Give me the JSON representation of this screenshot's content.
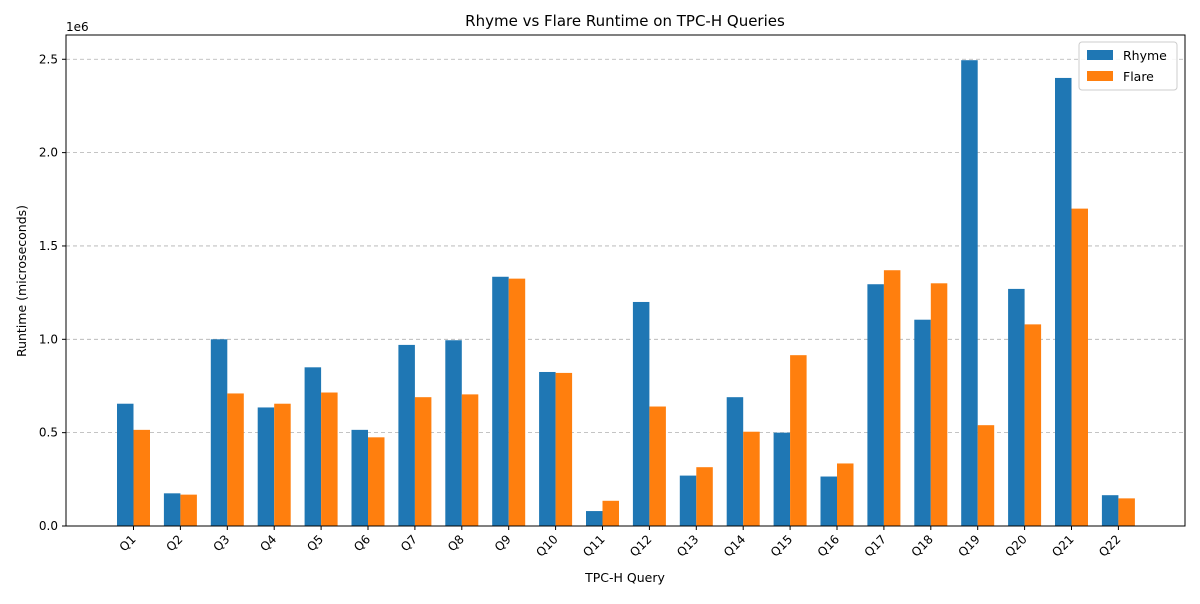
{
  "chart_data": {
    "type": "bar",
    "title": "Rhyme vs Flare Runtime on TPC-H Queries",
    "xlabel": "TPC-H Query",
    "ylabel": "Runtime (microseconds)",
    "y_scale_label": "1e6",
    "ylim": [
      0,
      2630000
    ],
    "yticks": [
      0,
      500000,
      1000000,
      1500000,
      2000000,
      2500000
    ],
    "ytick_labels": [
      "0.0",
      "0.5",
      "1.0",
      "1.5",
      "2.0",
      "2.5"
    ],
    "grid": "y-dashed",
    "legend_position": "top-right",
    "categories": [
      "Q1",
      "Q2",
      "Q3",
      "Q4",
      "Q5",
      "Q6",
      "Q7",
      "Q8",
      "Q9",
      "Q10",
      "Q11",
      "Q12",
      "Q13",
      "Q14",
      "Q15",
      "Q16",
      "Q17",
      "Q18",
      "Q19",
      "Q20",
      "Q21",
      "Q22"
    ],
    "series": [
      {
        "name": "Rhyme",
        "color": "#1f77b4",
        "values": [
          655000,
          175000,
          1000000,
          635000,
          850000,
          515000,
          970000,
          995000,
          1335000,
          825000,
          80000,
          1200000,
          270000,
          690000,
          500000,
          265000,
          1295000,
          1105000,
          2495000,
          1270000,
          2400000,
          165000
        ]
      },
      {
        "name": "Flare",
        "color": "#ff7f0e",
        "values": [
          515000,
          168000,
          710000,
          655000,
          715000,
          475000,
          690000,
          705000,
          1325000,
          820000,
          135000,
          640000,
          315000,
          505000,
          915000,
          335000,
          1370000,
          1300000,
          540000,
          1080000,
          1700000,
          148000
        ]
      }
    ]
  }
}
